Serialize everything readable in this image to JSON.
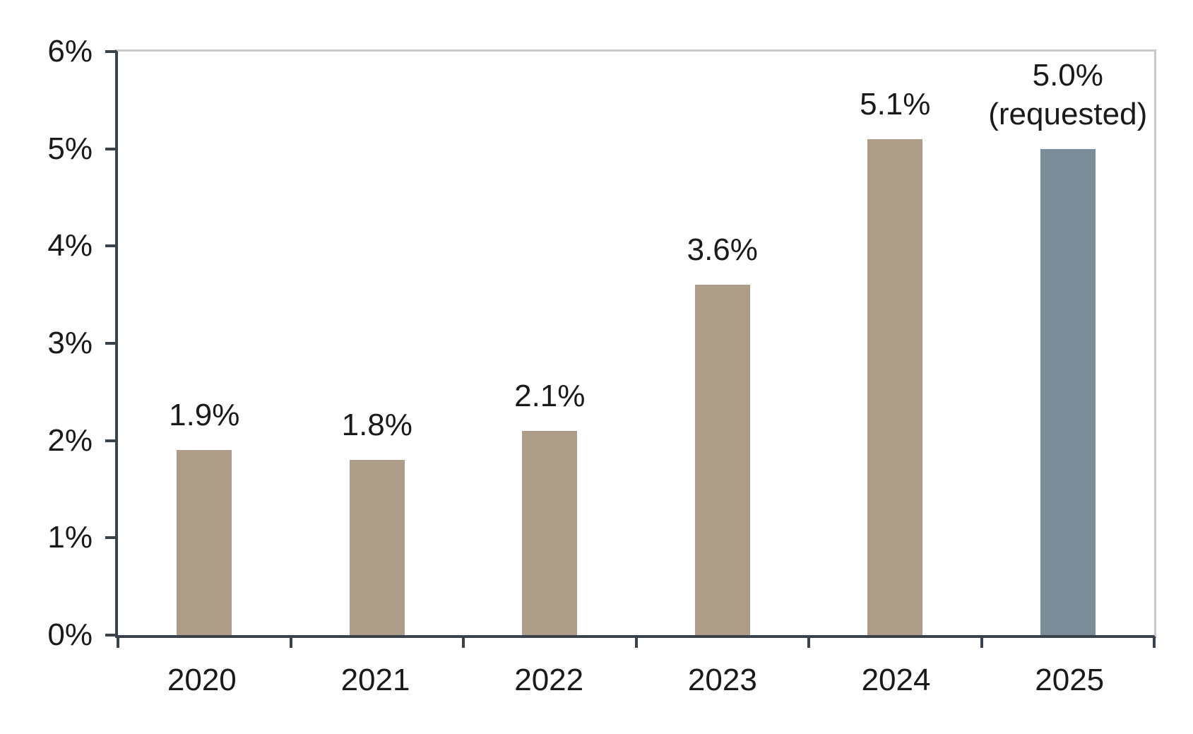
{
  "chart_data": {
    "type": "bar",
    "title": "",
    "xlabel": "",
    "ylabel": "",
    "categories": [
      "2020",
      "2021",
      "2022",
      "2023",
      "2024",
      "2025"
    ],
    "values": [
      1.9,
      1.8,
      2.1,
      3.6,
      5.1,
      5.0
    ],
    "bar_labels": [
      "1.9%",
      "1.8%",
      "2.1%",
      "3.6%",
      "5.1%",
      "5.0%\n(requested)"
    ],
    "highlight_index": 5,
    "highlight_note": "(requested)",
    "y_ticks": [
      "0%",
      "1%",
      "2%",
      "3%",
      "4%",
      "5%",
      "6%"
    ],
    "ylim": [
      0,
      6
    ],
    "grid": "top and right frame lines only, no inner gridlines",
    "legend": "none",
    "colors": {
      "bar_default": "#AD9C88",
      "bar_highlight": "#7B8D98",
      "axis": "#3A424B",
      "frame": "#C9C9C9",
      "text": "#1A1A1A",
      "background": "#FFFFFF"
    }
  }
}
